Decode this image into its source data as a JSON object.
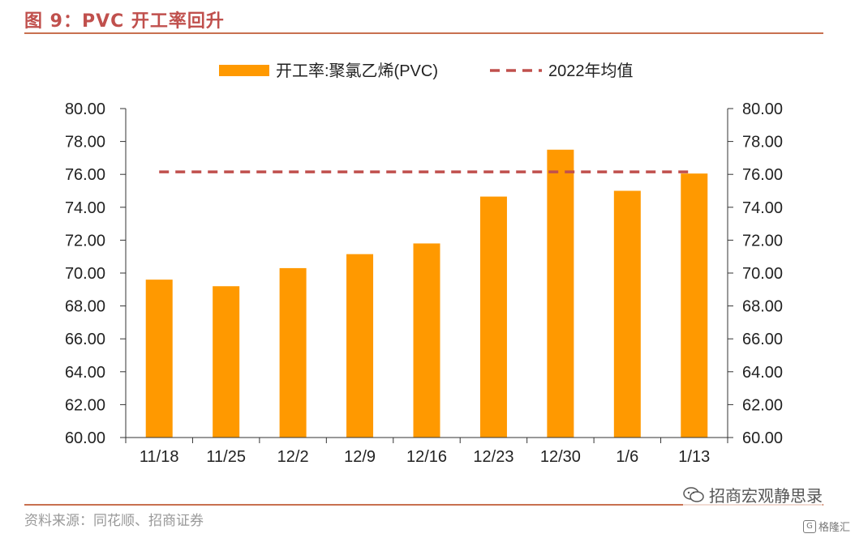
{
  "figure_title": "图 9：PVC 开工率回升",
  "source_text": "资料来源：同花顺、招商证券",
  "watermark_text": "招商宏观静思录",
  "corner_tag": "格隆汇",
  "colors": {
    "bar": "#ff9900",
    "avg_line": "#c0504d",
    "title": "#c0504d",
    "rule": "#c87050",
    "axis": "#333333"
  },
  "chart_data": {
    "type": "bar",
    "categories": [
      "11/18",
      "11/25",
      "12/2",
      "12/9",
      "12/16",
      "12/23",
      "12/30",
      "1/6",
      "1/13"
    ],
    "series": [
      {
        "name": "开工率:聚氯乙烯(PVC)",
        "values": [
          69.6,
          69.2,
          70.3,
          71.15,
          71.8,
          74.65,
          77.5,
          75.0,
          76.05
        ]
      }
    ],
    "reference_line": {
      "name": "2022年均值",
      "value": 76.15,
      "style": "dashed"
    },
    "yticks": [
      "60.00",
      "62.00",
      "64.00",
      "66.00",
      "68.00",
      "70.00",
      "72.00",
      "74.00",
      "76.00",
      "78.00",
      "80.00"
    ],
    "ylim": [
      60,
      80
    ],
    "dual_axis_mirrored": true,
    "legend_position": "top",
    "grid": false
  }
}
